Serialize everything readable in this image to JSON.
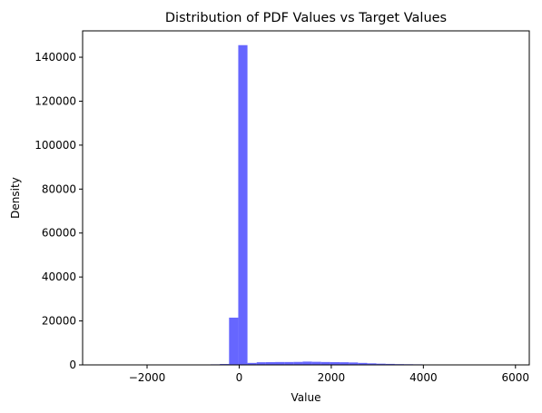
{
  "chart_data": {
    "type": "bar",
    "title": "Distribution of PDF Values vs Target Values",
    "xlabel": "Value",
    "ylabel": "Density",
    "xlim": [
      -3400,
      6300
    ],
    "ylim": [
      0,
      152000
    ],
    "x_ticks": [
      -2000,
      0,
      2000,
      4000,
      6000
    ],
    "x_tick_labels": [
      "−2000",
      "0",
      "2000",
      "4000",
      "6000"
    ],
    "y_ticks": [
      0,
      20000,
      40000,
      60000,
      80000,
      100000,
      120000,
      140000
    ],
    "y_tick_labels": [
      "0",
      "20000",
      "40000",
      "60000",
      "80000",
      "100000",
      "120000",
      "140000"
    ],
    "grid": false,
    "bar_color": "#6666ff",
    "bins": [
      {
        "x0": -1020,
        "x1": -820,
        "value": 150
      },
      {
        "x0": -820,
        "x1": -620,
        "value": 200
      },
      {
        "x0": -620,
        "x1": -420,
        "value": 250
      },
      {
        "x0": -420,
        "x1": -220,
        "value": 400
      },
      {
        "x0": -220,
        "x1": -20,
        "value": 21500
      },
      {
        "x0": -20,
        "x1": 180,
        "value": 145500
      },
      {
        "x0": 180,
        "x1": 380,
        "value": 900
      },
      {
        "x0": 380,
        "x1": 580,
        "value": 1200
      },
      {
        "x0": 580,
        "x1": 780,
        "value": 1250
      },
      {
        "x0": 780,
        "x1": 980,
        "value": 1300
      },
      {
        "x0": 980,
        "x1": 1180,
        "value": 1300
      },
      {
        "x0": 1180,
        "x1": 1380,
        "value": 1350
      },
      {
        "x0": 1380,
        "x1": 1580,
        "value": 1500
      },
      {
        "x0": 1580,
        "x1": 1780,
        "value": 1400
      },
      {
        "x0": 1780,
        "x1": 1980,
        "value": 1300
      },
      {
        "x0": 1980,
        "x1": 2180,
        "value": 1250
      },
      {
        "x0": 2180,
        "x1": 2380,
        "value": 1200
      },
      {
        "x0": 2380,
        "x1": 2580,
        "value": 1100
      },
      {
        "x0": 2580,
        "x1": 2780,
        "value": 900
      },
      {
        "x0": 2780,
        "x1": 2980,
        "value": 700
      },
      {
        "x0": 2980,
        "x1": 3180,
        "value": 550
      },
      {
        "x0": 3180,
        "x1": 3380,
        "value": 450
      },
      {
        "x0": 3380,
        "x1": 3580,
        "value": 350
      },
      {
        "x0": 3580,
        "x1": 3780,
        "value": 300
      },
      {
        "x0": 3780,
        "x1": 3980,
        "value": 250
      },
      {
        "x0": 3980,
        "x1": 4180,
        "value": 150
      },
      {
        "x0": 4180,
        "x1": 4380,
        "value": 60
      },
      {
        "x0": 4380,
        "x1": 4580,
        "value": 30
      }
    ]
  }
}
